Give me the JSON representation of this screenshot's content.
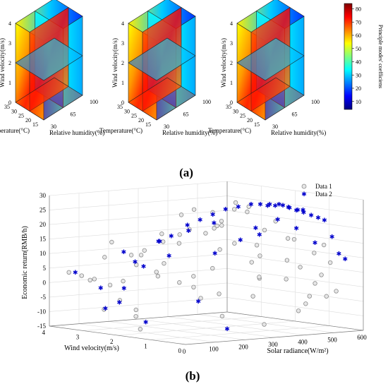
{
  "panel_a": {
    "caption": "(a)",
    "labels": {
      "z": "Wind velocity(m/s)",
      "temp": "Temperature(°C)",
      "rh": "Relative humidity(%)"
    },
    "ticks": {
      "z": [
        "0",
        "1",
        "2",
        "3",
        "4"
      ],
      "temp": [
        "15",
        "20",
        "25",
        "30",
        "35"
      ],
      "rh": [
        "30",
        "65",
        "100"
      ]
    },
    "colorbar": {
      "label": "Principle modes' coefficiens",
      "ticks": [
        "10",
        "20",
        "30",
        "40",
        "50",
        "60",
        "70",
        "80"
      ],
      "range": [
        4,
        84
      ]
    },
    "cube_colors": [
      "#00007f",
      "#0000ff",
      "#007fff",
      "#00ffff",
      "#7fff7f",
      "#ffff00",
      "#ff7f00",
      "#ff0000",
      "#7f0000"
    ]
  },
  "panel_b": {
    "caption": "(b)",
    "chart_data": {
      "type": "scatter",
      "title": "",
      "xlabel": "Solar radiance(W/m²)",
      "ylabel": "Wind velocity(m/s)",
      "zlabel": "Economic return(RMB/h)",
      "xlim": [
        0,
        600
      ],
      "ylim": [
        0,
        4
      ],
      "zlim": [
        -15,
        30
      ],
      "x_ticks": [
        "0",
        "100",
        "200",
        "300",
        "400",
        "500",
        "600"
      ],
      "y_ticks": [
        "0",
        "1",
        "2",
        "3",
        "4"
      ],
      "z_ticks": [
        "-15",
        "-10",
        "-5",
        "0",
        "5",
        "10",
        "15",
        "20",
        "25",
        "30"
      ],
      "legend_position": "top-right",
      "series": [
        {
          "name": "Data 1",
          "color": "#8c8c8c",
          "marker": "circle",
          "points": [
            [
              20,
              3.6,
              4
            ],
            [
              40,
              3.4,
              3
            ],
            [
              60,
              3.2,
              2
            ],
            [
              80,
              3.5,
              1
            ],
            [
              90,
              3.0,
              0
            ],
            [
              100,
              2.8,
              -5
            ],
            [
              120,
              2.5,
              -8
            ],
            [
              130,
              3.3,
              14
            ],
            [
              150,
              2.9,
              10
            ],
            [
              160,
              2.6,
              12
            ],
            [
              180,
              2.2,
              8
            ],
            [
              190,
              3.1,
              6
            ],
            [
              200,
              2.4,
              15
            ],
            [
              210,
              2.0,
              18
            ],
            [
              220,
              1.8,
              20
            ],
            [
              230,
              2.7,
              17
            ],
            [
              240,
              1.5,
              19
            ],
            [
              250,
              2.3,
              24
            ],
            [
              260,
              1.2,
              22
            ],
            [
              270,
              2.1,
              26
            ],
            [
              280,
              1.0,
              16
            ],
            [
              290,
              1.6,
              21
            ],
            [
              300,
              0.8,
              27
            ],
            [
              310,
              1.9,
              25
            ],
            [
              320,
              0.6,
              12
            ],
            [
              330,
              1.4,
              29
            ],
            [
              340,
              1.1,
              28
            ],
            [
              350,
              0.4,
              24
            ],
            [
              360,
              1.7,
              26
            ],
            [
              370,
              0.9,
              20
            ],
            [
              380,
              0.3,
              18
            ],
            [
              390,
              1.3,
              14
            ],
            [
              400,
              0.5,
              10
            ],
            [
              410,
              0.2,
              8
            ],
            [
              420,
              0.7,
              3
            ],
            [
              430,
              0.1,
              -2
            ],
            [
              440,
              0.3,
              -5
            ],
            [
              450,
              0.6,
              -8
            ],
            [
              460,
              0.2,
              2
            ],
            [
              470,
              0.1,
              5
            ],
            [
              480,
              0.4,
              12
            ],
            [
              490,
              0.2,
              15
            ],
            [
              500,
              0.1,
              9
            ],
            [
              510,
              0.3,
              -3
            ],
            [
              520,
              0.1,
              -1
            ],
            [
              150,
              3.7,
              -10
            ],
            [
              200,
              3.2,
              -12
            ],
            [
              100,
              2.2,
              -14
            ],
            [
              250,
              1.1,
              -9
            ],
            [
              300,
              0.3,
              -11
            ],
            [
              350,
              2.6,
              -6
            ],
            [
              400,
              1.5,
              -4
            ],
            [
              60,
              2.9,
              10
            ],
            [
              120,
              1.9,
              6
            ],
            [
              180,
              3.4,
              0
            ],
            [
              240,
              2.9,
              2
            ],
            [
              280,
              2.2,
              -1
            ],
            [
              330,
              0.7,
              4
            ],
            [
              380,
              2.3,
              11
            ],
            [
              430,
              1.8,
              7
            ],
            [
              470,
              0.9,
              16
            ],
            [
              80,
              2.0,
              12
            ],
            [
              140,
              1.4,
              3
            ],
            [
              300,
              2.8,
              13
            ],
            [
              360,
              2.9,
              1
            ],
            [
              420,
              2.6,
              20
            ],
            [
              200,
              0.9,
              22
            ],
            [
              160,
              0.6,
              9
            ],
            [
              260,
              0.1,
              6
            ],
            [
              320,
              1.8,
              -3
            ]
          ]
        },
        {
          "name": "Data 2",
          "color": "#0000cc",
          "marker": "star",
          "points": [
            [
              30,
              3.5,
              4
            ],
            [
              70,
              3.1,
              -1
            ],
            [
              110,
              2.9,
              -6
            ],
            [
              130,
              2.3,
              -12
            ],
            [
              90,
              2.6,
              12
            ],
            [
              150,
              2.1,
              16
            ],
            [
              170,
              1.9,
              18
            ],
            [
              190,
              1.6,
              22
            ],
            [
              210,
              1.4,
              24
            ],
            [
              230,
              1.2,
              26
            ],
            [
              250,
              1.0,
              28
            ],
            [
              270,
              0.8,
              29
            ],
            [
              290,
              0.6,
              30
            ],
            [
              310,
              0.5,
              30
            ],
            [
              330,
              0.4,
              30
            ],
            [
              350,
              0.3,
              30
            ],
            [
              370,
              0.2,
              29
            ],
            [
              390,
              0.1,
              28
            ],
            [
              410,
              0.1,
              27
            ],
            [
              430,
              0.05,
              26
            ],
            [
              450,
              0.02,
              25
            ],
            [
              470,
              0.01,
              24
            ],
            [
              300,
              0.2,
              30
            ],
            [
              320,
              0.15,
              30
            ],
            [
              340,
              0.1,
              30
            ],
            [
              360,
              0.08,
              29
            ],
            [
              380,
              0.05,
              28
            ],
            [
              400,
              0.03,
              28
            ],
            [
              200,
              2.5,
              15
            ],
            [
              240,
              2.0,
              19
            ],
            [
              280,
              1.6,
              22
            ],
            [
              160,
              3.2,
              -2
            ],
            [
              120,
              3.4,
              -9
            ],
            [
              260,
              1.4,
              12
            ],
            [
              300,
              1.0,
              17
            ],
            [
              340,
              0.9,
              21
            ],
            [
              380,
              0.6,
              24
            ],
            [
              420,
              0.4,
              21
            ],
            [
              460,
              0.2,
              16
            ],
            [
              500,
              0.05,
              18
            ],
            [
              520,
              0.02,
              12
            ],
            [
              540,
              0.01,
              10
            ],
            [
              180,
              2.8,
              6
            ],
            [
              220,
              2.4,
              10
            ],
            [
              140,
              2.7,
              8
            ],
            [
              330,
              0.7,
              19
            ],
            [
              290,
              1.3,
              -14
            ],
            [
              250,
              1.8,
              -5
            ]
          ]
        }
      ]
    }
  }
}
